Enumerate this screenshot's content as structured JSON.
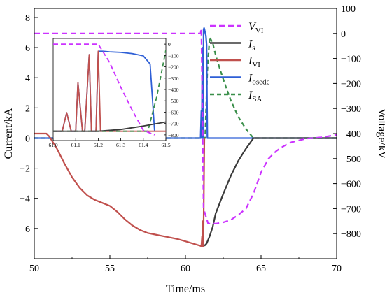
{
  "chart_data": {
    "type": "line",
    "xlabel": "Time/ms",
    "ylabel_left": "Current/kA",
    "ylabel_right": "Voltage/kV",
    "xlim": [
      50,
      70
    ],
    "ylim_left": [
      -8,
      8.6
    ],
    "ylim_right": [
      -900,
      100
    ],
    "xticks": [
      "50",
      "55",
      "60",
      "65",
      "70"
    ],
    "yticks_left": [
      "−6",
      "−4",
      "−2",
      "0",
      "2",
      "4",
      "6",
      "8"
    ],
    "yticks_left_values": [
      -6,
      -4,
      -2,
      0,
      2,
      4,
      6,
      8
    ],
    "yticks_right": [
      "100",
      "0",
      "−100",
      "−200",
      "−300",
      "−400",
      "−500",
      "−600",
      "−700",
      "−800"
    ],
    "yticks_right_values": [
      100,
      0,
      -100,
      -200,
      -300,
      -400,
      -500,
      -600,
      -700,
      -800
    ],
    "legend_position": "top-right",
    "legend": [
      {
        "key": "VVI",
        "main": "V",
        "sub": "VI",
        "color": "#cc33ff",
        "dash": "8,5"
      },
      {
        "key": "Is",
        "main": "I",
        "sub": "s",
        "color": "#3a3a3a",
        "dash": ""
      },
      {
        "key": "IVI",
        "main": "I",
        "sub": "VI",
        "color": "#c0504d",
        "dash": ""
      },
      {
        "key": "Iosedc",
        "main": "I",
        "sub": "osedc",
        "color": "#2e5fd6",
        "dash": ""
      },
      {
        "key": "ISA",
        "main": "I",
        "sub": "SA",
        "color": "#3a8f4a",
        "dash": "6,4"
      }
    ],
    "series": [
      {
        "key": "IVI",
        "axis": "left",
        "color": "#c0504d",
        "dash": "",
        "x": [
          50.0,
          50.8,
          51.0,
          51.5,
          52.0,
          52.5,
          53.0,
          53.5,
          54.0,
          54.5,
          55.0,
          55.5,
          56.0,
          56.5,
          57.0,
          57.5,
          58.0,
          58.5,
          59.0,
          59.5,
          60.0,
          60.5,
          61.0,
          61.05,
          61.1,
          61.13,
          61.16,
          61.19,
          61.22,
          61.25
        ],
        "y": [
          0.3,
          0.3,
          0.1,
          -0.7,
          -1.7,
          -2.6,
          -3.3,
          -3.8,
          -4.1,
          -4.3,
          -4.5,
          -4.9,
          -5.4,
          -5.8,
          -6.1,
          -6.3,
          -6.4,
          -6.5,
          -6.6,
          -6.7,
          -6.85,
          -7.0,
          -7.15,
          -7.2,
          -6.5,
          -7.2,
          -5.5,
          -7.2,
          -3.0,
          0.0
        ]
      },
      {
        "key": "Is",
        "axis": "left",
        "color": "#3a3a3a",
        "dash": "",
        "x": [
          61.25,
          61.4,
          61.6,
          61.8,
          62.0,
          62.5,
          63.0,
          63.5,
          64.0,
          64.5,
          70.0
        ],
        "y": [
          -7.15,
          -7.0,
          -6.5,
          -5.9,
          -5.0,
          -3.7,
          -2.5,
          -1.5,
          -0.7,
          0.0,
          0.0
        ]
      },
      {
        "key": "Iosedc",
        "axis": "left",
        "color": "#2e5fd6",
        "dash": "",
        "x": [
          50.0,
          61.0,
          61.05,
          61.08,
          61.1,
          61.13,
          61.15,
          61.18,
          61.2,
          61.23,
          61.26,
          61.3,
          61.35,
          61.4,
          61.42,
          61.45,
          70.0
        ],
        "y": [
          0.0,
          0.0,
          1.8,
          0.0,
          3.8,
          0.0,
          6.0,
          0.0,
          7.2,
          7.3,
          7.2,
          7.0,
          6.8,
          6.2,
          3.0,
          0.0,
          0.0
        ]
      },
      {
        "key": "ISA",
        "axis": "left",
        "color": "#3a8f4a",
        "dash": "6,4",
        "x": [
          50.0,
          61.3,
          61.45,
          61.6,
          61.8,
          62.0,
          62.3,
          62.6,
          63.0,
          63.5,
          64.0,
          64.5,
          70.0
        ],
        "y": [
          0.0,
          0.0,
          4.5,
          6.7,
          6.3,
          5.5,
          4.5,
          3.6,
          2.5,
          1.4,
          0.6,
          0.0,
          0.0
        ]
      },
      {
        "key": "VVI",
        "axis": "right",
        "color": "#cc33ff",
        "dash": "8,5",
        "x": [
          50.0,
          61.0,
          61.05,
          61.2,
          61.5,
          62.0,
          62.5,
          63.0,
          63.5,
          64.0,
          64.5,
          65.0,
          65.5,
          66.0,
          66.5,
          67.0,
          68.0,
          69.0,
          70.0
        ],
        "y": [
          0,
          0,
          20,
          -700,
          -760,
          -760,
          -755,
          -745,
          -725,
          -700,
          -640,
          -555,
          -500,
          -470,
          -450,
          -435,
          -420,
          -415,
          -405
        ]
      }
    ],
    "inset": {
      "xlim": [
        61.0,
        61.5
      ],
      "xticks": [
        "61.0",
        "61.1",
        "61.2",
        "61.3",
        "61.4",
        "61.5"
      ],
      "ylim_left": [
        -0.8,
        8.0
      ],
      "ylim_right": [
        -850,
        50
      ],
      "yticks_right": [
        "0",
        "−100",
        "−200",
        "−300",
        "−400",
        "−500",
        "−600",
        "−700",
        "−800"
      ],
      "yticks_right_values": [
        0,
        -100,
        -200,
        -300,
        -400,
        -500,
        -600,
        -700,
        -800
      ],
      "series": [
        {
          "key": "Iosedc",
          "axis": "left",
          "color": "#2e5fd6",
          "dash": "",
          "x": [
            61.0,
            61.04,
            61.06,
            61.08,
            61.1,
            61.11,
            61.13,
            61.14,
            61.16,
            61.17,
            61.19,
            61.2,
            61.22,
            61.25,
            61.3,
            61.35,
            61.4,
            61.43,
            61.45
          ],
          "y": [
            0.0,
            0.0,
            1.6,
            0.0,
            0.0,
            4.2,
            0.0,
            0.0,
            6.6,
            0.0,
            0.0,
            6.9,
            6.9,
            6.85,
            6.8,
            6.7,
            6.5,
            5.8,
            0.0
          ]
        },
        {
          "key": "IVI",
          "axis": "left",
          "color": "#c0504d",
          "dash": "",
          "x": [
            61.0,
            61.04,
            61.06,
            61.08,
            61.1,
            61.11,
            61.13,
            61.14,
            61.16,
            61.17,
            61.19,
            61.2,
            61.21,
            61.5
          ],
          "y": [
            0.0,
            0.0,
            1.6,
            0.0,
            0.0,
            4.2,
            0.0,
            0.0,
            6.6,
            0.0,
            0.0,
            6.9,
            0.0,
            0.0
          ]
        },
        {
          "key": "ISA",
          "axis": "left",
          "color": "#3a8f4a",
          "dash": "6,4",
          "x": [
            61.0,
            61.42,
            61.46,
            61.5
          ],
          "y": [
            0.0,
            0.0,
            3.0,
            7.0
          ]
        },
        {
          "key": "Is",
          "axis": "left",
          "color": "#3a3a3a",
          "dash": "",
          "x": [
            61.0,
            61.2,
            61.3,
            61.4,
            61.5
          ],
          "y": [
            0.0,
            0.0,
            0.15,
            0.45,
            0.8
          ]
        },
        {
          "key": "VVI",
          "axis": "right",
          "color": "#cc33ff",
          "dash": "7,4",
          "x": [
            61.0,
            61.2,
            61.25,
            61.3,
            61.35,
            61.4,
            61.45
          ],
          "y": [
            0,
            0,
            -160,
            -380,
            -580,
            -760,
            -800
          ]
        }
      ]
    }
  }
}
